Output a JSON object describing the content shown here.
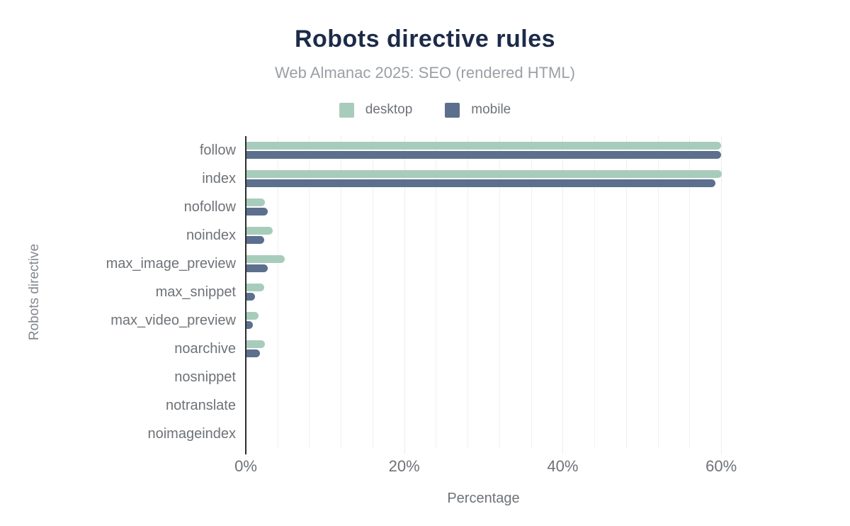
{
  "header": {
    "title": "Robots directive rules",
    "subtitle": "Web Almanac 2025: SEO (rendered HTML)"
  },
  "legend": {
    "items": [
      {
        "label": "desktop",
        "color": "#a8ccbb"
      },
      {
        "label": "mobile",
        "color": "#5c6f8d"
      }
    ]
  },
  "chart_data": {
    "type": "bar",
    "orientation": "horizontal",
    "title": "Robots directive rules",
    "subtitle": "Web Almanac 2025: SEO (rendered HTML)",
    "categories": [
      "follow",
      "index",
      "nofollow",
      "noindex",
      "max_image_preview",
      "max_snippet",
      "max_video_preview",
      "noarchive",
      "nosnippet",
      "notranslate",
      "noimageindex"
    ],
    "series": [
      {
        "name": "desktop",
        "color": "#a8ccbb",
        "values": [
          60.0,
          60.1,
          2.4,
          3.4,
          4.9,
          2.3,
          1.6,
          2.4,
          0.0,
          0.0,
          0.0
        ]
      },
      {
        "name": "mobile",
        "color": "#5c6f8d",
        "values": [
          60.0,
          59.3,
          2.8,
          2.3,
          2.8,
          1.2,
          0.9,
          1.8,
          0.0,
          0.0,
          0.0
        ]
      }
    ],
    "xlabel": "Percentage",
    "ylabel": "Robots directive",
    "xlim": [
      0,
      70
    ],
    "x_ticks": [
      {
        "value": 0,
        "label": "0%"
      },
      {
        "value": 20,
        "label": "20%"
      },
      {
        "value": 40,
        "label": "40%"
      },
      {
        "value": 60,
        "label": "60%"
      }
    ],
    "minor_grid_step": 4,
    "grid_max": 60,
    "legend_position": "top",
    "grid": "vertical minor gridlines, y-axis dark line at 0%"
  },
  "colors": {
    "title": "#1d2b49",
    "subtitle": "#9aa0a6",
    "axis_text": "#6e7277",
    "axis_line": "#2d2d2d",
    "gridline": "#f0f0f0",
    "background": "#ffffff"
  }
}
